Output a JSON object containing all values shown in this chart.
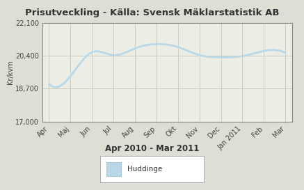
{
  "title": "Prisutveckling - Källa: Svensk Mäklarstatistik AB",
  "subtitle": "Apr 2010 - Mar 2011",
  "ylabel": "Kr/kvm",
  "x_labels": [
    "Apr",
    "Maj",
    "Jun",
    "Jul",
    "Aug",
    "Sep",
    "Okt",
    "Nov",
    "Dec",
    "Jan 2011",
    "Feb",
    "Mar"
  ],
  "y_values": [
    18950,
    19350,
    20580,
    20430,
    20780,
    21000,
    20850,
    20430,
    20320,
    20380,
    20650,
    20550
  ],
  "ylim": [
    17000,
    22100
  ],
  "yticks": [
    17000,
    18700,
    20400,
    22100
  ],
  "ytick_labels": [
    "17,000",
    "18,700",
    "20,400",
    "22,100"
  ],
  "line_color": "#b8d8e8",
  "line_width": 2.0,
  "legend_label": "Huddinge",
  "background_outer": "#deded4",
  "background_inner": "#eceee6",
  "grid_color": "#c8c8bc",
  "title_fontsize": 9.5,
  "subtitle_fontsize": 8.5,
  "axis_fontsize": 7.0
}
